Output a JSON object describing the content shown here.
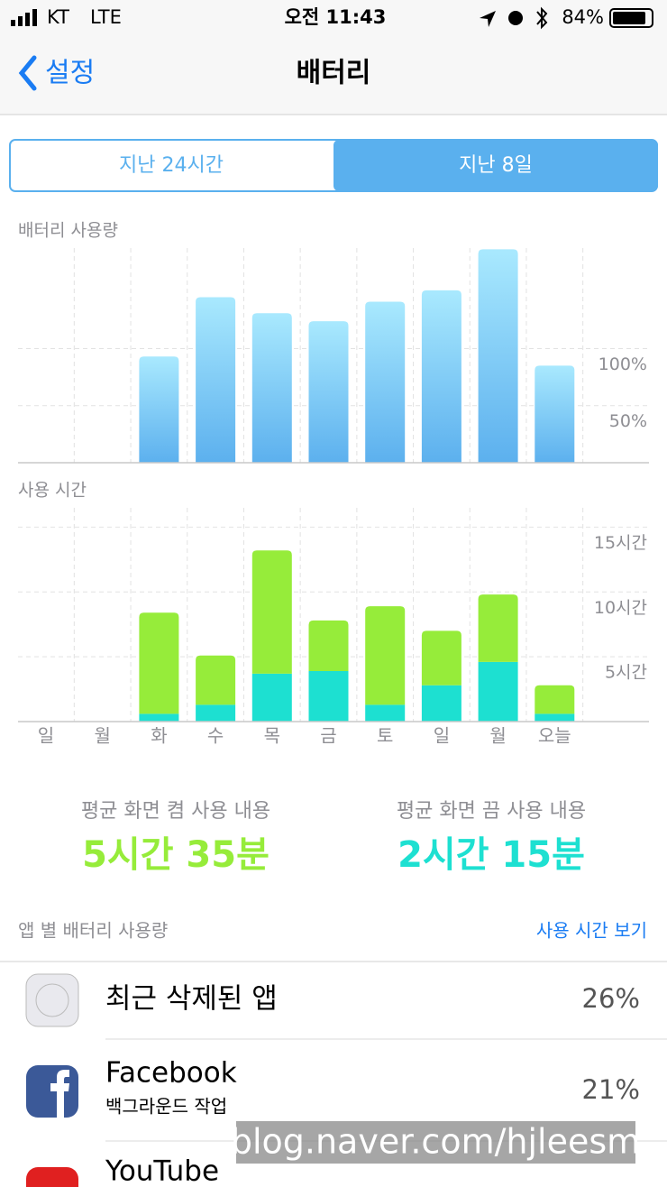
{
  "status_bar": {
    "carrier": "KT",
    "network": "LTE",
    "time": "오전 11:43",
    "battery": "84%"
  },
  "nav": {
    "back": "설정",
    "title": "배터리"
  },
  "segments": {
    "items": [
      "지난 24시간",
      "지난 8일"
    ],
    "selected": 1
  },
  "chart_data": [
    {
      "type": "bar",
      "title": "배터리 사용량",
      "values": [
        null,
        null,
        93,
        145,
        131,
        124,
        141,
        151,
        187,
        85
      ],
      "ylim": [
        0,
        192
      ],
      "yticks": [
        {
          "value": 50,
          "label": "50%"
        },
        {
          "value": 100,
          "label": "100%"
        }
      ],
      "grid": true,
      "color": [
        "#a9e9fe",
        "#5cb0ee"
      ]
    },
    {
      "type": "stacked_bar",
      "title": "사용 시간",
      "categories": [
        "일",
        "월",
        "화",
        "수",
        "목",
        "금",
        "토",
        "일",
        "월",
        "오늘"
      ],
      "series": [
        {
          "color": "#1de0d1",
          "values": [
            null,
            null,
            0.6,
            1.3,
            3.7,
            3.9,
            1.3,
            2.8,
            4.6,
            0.6
          ]
        },
        {
          "color": "#96ec3a",
          "values": [
            null,
            null,
            7.8,
            3.8,
            9.5,
            3.9,
            7.6,
            4.2,
            5.2,
            2.2
          ]
        }
      ],
      "ylim": [
        0,
        16
      ],
      "yticks": [
        {
          "value": 5,
          "label": "5시간"
        },
        {
          "value": 10,
          "label": "10시간"
        },
        {
          "value": 15,
          "label": "15시간"
        }
      ],
      "grid": true
    }
  ],
  "summary": [
    {
      "label": "평균 화면 켬 사용 내용",
      "value": "5시간 35분",
      "color": "#96ec3a"
    },
    {
      "label": "평균 화면 끔 사용 내용",
      "value": "2시간 15분",
      "color": "#1de0d1"
    }
  ],
  "app_list": {
    "title": "앱 별 배터리 사용량",
    "link": "사용 시간 보기",
    "rows": [
      {
        "name": "최근 삭제된 앱",
        "percent": "26%"
      },
      {
        "name": "Facebook",
        "detail": "백그라운드 작업",
        "percent": "21%"
      },
      {
        "name": "YouTube"
      }
    ]
  },
  "watermark": "blog.naver.com/hjleesm"
}
